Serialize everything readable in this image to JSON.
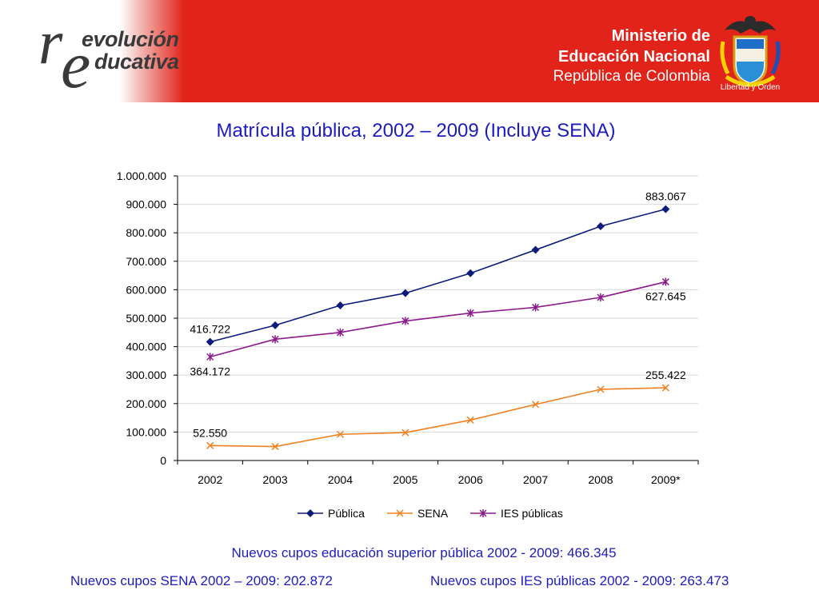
{
  "header": {
    "logo": {
      "letter_r": "r",
      "letter_e": "e",
      "line1": "evolución",
      "line2": "ducativa"
    },
    "ministry": {
      "line1": "Ministerio de",
      "line2": "Educación Nacional",
      "line3": "República de Colombia"
    },
    "crest_caption": "Libertad y Orden",
    "colors": {
      "banner": "#e2231a"
    }
  },
  "chart_data": {
    "type": "line",
    "title": "Matrícula pública, 2002 – 2009 (Incluye SENA)",
    "categories": [
      "2002",
      "2003",
      "2004",
      "2005",
      "2006",
      "2007",
      "2008",
      "2009*"
    ],
    "ylim": [
      0,
      1000000
    ],
    "yticks": [
      {
        "value": 0,
        "label": "0"
      },
      {
        "value": 100000,
        "label": "100.000"
      },
      {
        "value": 200000,
        "label": "200.000"
      },
      {
        "value": 300000,
        "label": "300.000"
      },
      {
        "value": 400000,
        "label": "400.000"
      },
      {
        "value": 500000,
        "label": "500.000"
      },
      {
        "value": 600000,
        "label": "600.000"
      },
      {
        "value": 700000,
        "label": "700.000"
      },
      {
        "value": 800000,
        "label": "800.000"
      },
      {
        "value": 900000,
        "label": "900.000"
      },
      {
        "value": 1000000,
        "label": "1.000.000"
      }
    ],
    "grid": true,
    "legend_position": "bottom",
    "series": [
      {
        "name": "Pública",
        "color": "#0d1c7a",
        "marker": "diamond",
        "values": [
          416722,
          475000,
          545000,
          588000,
          658000,
          740000,
          823000,
          883067
        ],
        "labels": [
          {
            "index": 0,
            "text": "416.722",
            "pos": "above"
          },
          {
            "index": 7,
            "text": "883.067",
            "pos": "above"
          }
        ]
      },
      {
        "name": "SENA",
        "color": "#f07f1f",
        "marker": "x",
        "values": [
          52550,
          49000,
          92000,
          98000,
          142000,
          197000,
          250000,
          255422
        ],
        "labels": [
          {
            "index": 0,
            "text": "52.550",
            "pos": "above"
          },
          {
            "index": 7,
            "text": "255.422",
            "pos": "above"
          }
        ]
      },
      {
        "name": "IES públicas",
        "color": "#8b1a8b",
        "marker": "star",
        "values": [
          364172,
          426000,
          450000,
          490000,
          518000,
          538000,
          573000,
          627645
        ],
        "labels": [
          {
            "index": 0,
            "text": "364.172",
            "pos": "below"
          },
          {
            "index": 7,
            "text": "627.645",
            "pos": "below"
          }
        ]
      }
    ]
  },
  "footer": {
    "line1": "Nuevos cupos educación superior pública 2002 - 2009: 466.345",
    "line2": "Nuevos cupos SENA 2002 – 2009: 202.872",
    "line3": "Nuevos cupos IES públicas 2002 - 2009: 263.473"
  }
}
